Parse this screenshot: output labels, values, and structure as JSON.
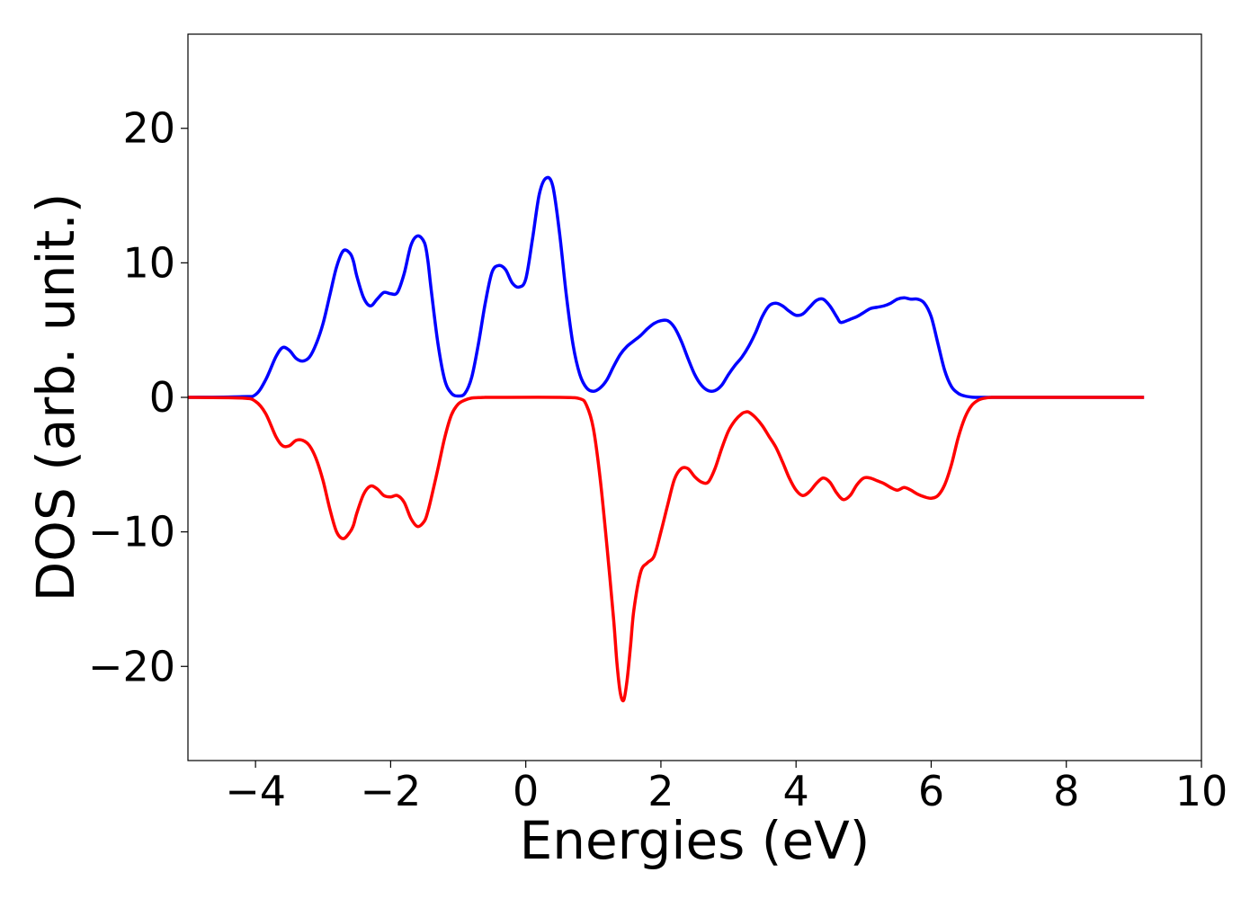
{
  "chart_data": {
    "type": "line",
    "title": "",
    "xlabel": "Energies (eV)",
    "ylabel": "DOS (arb. unit.)",
    "xlim": [
      -5,
      10
    ],
    "ylim": [
      -27,
      27
    ],
    "x_ticks": [
      -4,
      -2,
      0,
      2,
      4,
      6,
      8,
      10
    ],
    "y_ticks": [
      -20,
      -10,
      0,
      10,
      20
    ],
    "x_tick_labels": [
      "−4",
      "−2",
      "0",
      "2",
      "4",
      "6",
      "8",
      "10"
    ],
    "y_tick_labels": [
      "−20",
      "−10",
      "0",
      "10",
      "20"
    ],
    "grid": false,
    "legend": "none",
    "series": [
      {
        "color": "#0000ff",
        "x": [
          -5.0,
          -4.2,
          -4.0,
          -3.85,
          -3.7,
          -3.6,
          -3.5,
          -3.4,
          -3.3,
          -3.2,
          -3.1,
          -3.0,
          -2.9,
          -2.8,
          -2.7,
          -2.6,
          -2.55,
          -2.5,
          -2.4,
          -2.3,
          -2.2,
          -2.1,
          -2.0,
          -1.9,
          -1.8,
          -1.7,
          -1.6,
          -1.5,
          -1.45,
          -1.4,
          -1.3,
          -1.2,
          -1.1,
          -1.0,
          -0.9,
          -0.8,
          -0.7,
          -0.6,
          -0.5,
          -0.4,
          -0.3,
          -0.2,
          -0.1,
          0.0,
          0.1,
          0.2,
          0.3,
          0.4,
          0.5,
          0.6,
          0.7,
          0.8,
          0.9,
          1.0,
          1.1,
          1.2,
          1.3,
          1.4,
          1.5,
          1.6,
          1.7,
          1.8,
          1.9,
          2.0,
          2.1,
          2.2,
          2.3,
          2.4,
          2.5,
          2.6,
          2.7,
          2.8,
          2.9,
          3.0,
          3.1,
          3.2,
          3.3,
          3.4,
          3.5,
          3.6,
          3.7,
          3.8,
          3.9,
          4.0,
          4.1,
          4.2,
          4.3,
          4.4,
          4.5,
          4.6,
          4.65,
          4.7,
          4.8,
          4.9,
          5.0,
          5.1,
          5.2,
          5.3,
          5.4,
          5.5,
          5.6,
          5.7,
          5.8,
          5.9,
          6.0,
          6.1,
          6.2,
          6.3,
          6.4,
          6.5,
          6.6,
          6.7,
          6.8,
          6.9,
          7.0,
          8.0,
          9.15
        ],
        "y": [
          0,
          0.05,
          0.2,
          1.3,
          3.0,
          3.7,
          3.5,
          2.9,
          2.7,
          3.0,
          4.0,
          5.5,
          7.6,
          9.7,
          10.9,
          10.7,
          10.1,
          9.0,
          7.4,
          6.8,
          7.3,
          7.8,
          7.7,
          7.8,
          9.2,
          11.3,
          12.0,
          11.5,
          10.2,
          8.0,
          4.0,
          1.3,
          0.3,
          0.1,
          0.3,
          1.5,
          4.0,
          7.0,
          9.3,
          9.8,
          9.5,
          8.5,
          8.2,
          8.8,
          11.8,
          15.1,
          16.3,
          15.7,
          12.2,
          7.6,
          3.9,
          1.7,
          0.7,
          0.45,
          0.7,
          1.3,
          2.3,
          3.2,
          3.8,
          4.2,
          4.6,
          5.1,
          5.5,
          5.7,
          5.7,
          5.2,
          4.2,
          2.9,
          1.7,
          0.9,
          0.5,
          0.5,
          0.9,
          1.7,
          2.4,
          3.0,
          3.8,
          4.8,
          6.0,
          6.8,
          7.0,
          6.8,
          6.4,
          6.1,
          6.2,
          6.7,
          7.2,
          7.3,
          6.8,
          6.0,
          5.6,
          5.6,
          5.8,
          6.0,
          6.3,
          6.6,
          6.7,
          6.8,
          7.0,
          7.3,
          7.4,
          7.3,
          7.3,
          7.0,
          6.0,
          4.0,
          2.0,
          0.8,
          0.3,
          0.1,
          0.02,
          0,
          0,
          0,
          0,
          0,
          0
        ]
      },
      {
        "color": "#ff0000",
        "x": [
          -5.0,
          -4.2,
          -4.0,
          -3.85,
          -3.7,
          -3.6,
          -3.5,
          -3.4,
          -3.3,
          -3.2,
          -3.1,
          -3.0,
          -2.9,
          -2.8,
          -2.7,
          -2.6,
          -2.55,
          -2.5,
          -2.4,
          -2.3,
          -2.2,
          -2.1,
          -2.0,
          -1.9,
          -1.8,
          -1.7,
          -1.6,
          -1.5,
          -1.45,
          -1.4,
          -1.3,
          -1.2,
          -1.1,
          -1.0,
          -0.9,
          -0.8,
          -0.7,
          -0.6,
          -0.5,
          0.5,
          0.8,
          0.9,
          1.0,
          1.1,
          1.2,
          1.3,
          1.35,
          1.4,
          1.45,
          1.5,
          1.55,
          1.6,
          1.7,
          1.8,
          1.9,
          2.0,
          2.1,
          2.2,
          2.3,
          2.4,
          2.5,
          2.6,
          2.7,
          2.8,
          2.9,
          3.0,
          3.1,
          3.2,
          3.25,
          3.3,
          3.4,
          3.5,
          3.6,
          3.7,
          3.8,
          3.9,
          4.0,
          4.1,
          4.2,
          4.3,
          4.4,
          4.5,
          4.6,
          4.7,
          4.8,
          4.9,
          5.0,
          5.1,
          5.2,
          5.3,
          5.4,
          5.5,
          5.6,
          5.7,
          5.8,
          5.9,
          6.0,
          6.1,
          6.2,
          6.3,
          6.4,
          6.5,
          6.6,
          6.7,
          6.8,
          6.9,
          7.0,
          8.0,
          9.15
        ],
        "y": [
          0,
          -0.05,
          -0.3,
          -1.2,
          -2.9,
          -3.6,
          -3.6,
          -3.2,
          -3.2,
          -3.6,
          -4.6,
          -6.2,
          -8.3,
          -10.0,
          -10.5,
          -10.0,
          -9.5,
          -8.6,
          -7.2,
          -6.6,
          -6.8,
          -7.3,
          -7.4,
          -7.3,
          -7.8,
          -9.0,
          -9.6,
          -9.2,
          -8.5,
          -7.5,
          -5.3,
          -3.0,
          -1.3,
          -0.5,
          -0.2,
          -0.05,
          -0.02,
          0,
          0,
          0,
          -0.1,
          -0.6,
          -2.3,
          -6.0,
          -11.0,
          -16.5,
          -19.8,
          -22.0,
          -22.5,
          -21.0,
          -18.5,
          -15.8,
          -13.0,
          -12.3,
          -11.8,
          -10.0,
          -8.0,
          -6.1,
          -5.3,
          -5.3,
          -5.9,
          -6.3,
          -6.3,
          -5.3,
          -3.8,
          -2.5,
          -1.7,
          -1.2,
          -1.1,
          -1.1,
          -1.5,
          -2.1,
          -2.9,
          -3.7,
          -4.8,
          -6.0,
          -6.9,
          -7.3,
          -7.0,
          -6.4,
          -6.0,
          -6.3,
          -7.1,
          -7.6,
          -7.3,
          -6.5,
          -6.0,
          -6.0,
          -6.2,
          -6.4,
          -6.7,
          -6.9,
          -6.7,
          -6.9,
          -7.2,
          -7.4,
          -7.5,
          -7.3,
          -6.5,
          -5.0,
          -3.0,
          -1.5,
          -0.6,
          -0.2,
          -0.05,
          0,
          0,
          0,
          0
        ]
      }
    ]
  }
}
